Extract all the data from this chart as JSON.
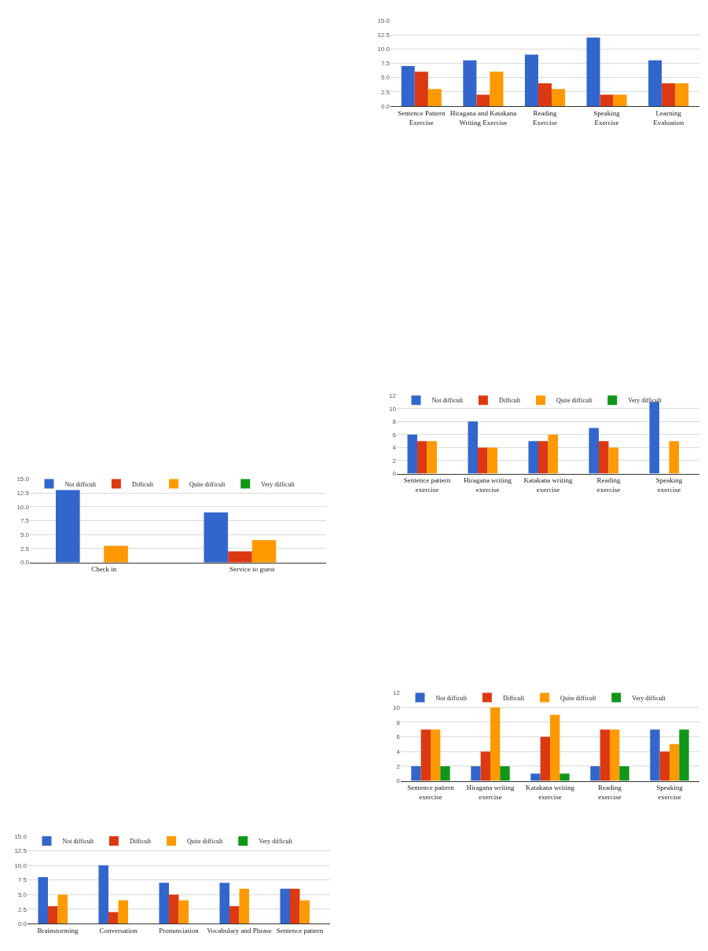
{
  "chart_data": [
    {
      "type": "bar",
      "categories": [
        "Check in",
        "Service to guest"
      ],
      "ylim": [
        0,
        15
      ],
      "yticks": [
        {
          "value": 0,
          "label": "0.0"
        },
        {
          "value": 2.5,
          "label": "2.5"
        },
        {
          "value": 5,
          "label": "5.0"
        },
        {
          "value": 7.5,
          "label": "7.5"
        },
        {
          "value": 10,
          "label": "10.0"
        },
        {
          "value": 12.5,
          "label": "12.5"
        },
        {
          "value": 15,
          "label": "15.0"
        }
      ],
      "grid": "y",
      "legend": "top left",
      "series": [
        {
          "name": "Not difficult",
          "color": "#3366cc",
          "values": [
            13,
            9
          ]
        },
        {
          "name": "Difficult",
          "color": "#dc3912",
          "values": [
            0,
            2
          ]
        },
        {
          "name": "Quite difficult",
          "color": "#ff9900",
          "values": [
            3,
            4
          ]
        },
        {
          "name": "Very difficult",
          "color": "#109618",
          "values": [
            0,
            0
          ]
        }
      ]
    },
    {
      "type": "bar",
      "categories": [
        "Brainstorming",
        "Conversation",
        "Pronunciation",
        "Vocabulary and Phrase",
        "Sentence pattern"
      ],
      "ylim": [
        0,
        15
      ],
      "yticks": [
        {
          "value": 0,
          "label": "0.0"
        },
        {
          "value": 2.5,
          "label": "2.5"
        },
        {
          "value": 5,
          "label": "5.0"
        },
        {
          "value": 7.5,
          "label": "7.5"
        },
        {
          "value": 10,
          "label": "10.0"
        },
        {
          "value": 12.5,
          "label": "12.5"
        },
        {
          "value": 15,
          "label": "15.0"
        }
      ],
      "grid": "y",
      "legend": "top left",
      "series": [
        {
          "name": "Not difficult",
          "color": "#3366cc",
          "values": [
            8,
            10,
            7,
            7,
            6
          ]
        },
        {
          "name": "Difficult",
          "color": "#dc3912",
          "values": [
            3,
            2,
            5,
            3,
            6
          ]
        },
        {
          "name": "Quite difficult",
          "color": "#ff9900",
          "values": [
            5,
            4,
            4,
            6,
            4
          ]
        },
        {
          "name": "Very difficult",
          "color": "#109618",
          "values": [
            0,
            0,
            0,
            0,
            0
          ]
        }
      ]
    },
    {
      "type": "bar",
      "categories": [
        "Sentence Pattern Exercise",
        "Hiragana and Katakana Writing Exercise",
        "Reading Exercise",
        "Speaking Exercise",
        "Learning Evaluation"
      ],
      "ylim": [
        0,
        15
      ],
      "yticks": [
        {
          "value": 0,
          "label": "0.0"
        },
        {
          "value": 2.5,
          "label": "2.5"
        },
        {
          "value": 5,
          "label": "5.0"
        },
        {
          "value": 7.5,
          "label": "7.5"
        },
        {
          "value": 10,
          "label": "10.0"
        },
        {
          "value": 12.5,
          "label": "12.5"
        },
        {
          "value": 15,
          "label": "15.0"
        }
      ],
      "grid": "y",
      "series": [
        {
          "color": "#3366cc",
          "values": [
            7,
            8,
            9,
            12,
            8
          ]
        },
        {
          "color": "#dc3912",
          "values": [
            6,
            2,
            4,
            2,
            4
          ]
        },
        {
          "color": "#ff9900",
          "values": [
            3,
            6,
            3,
            2,
            4
          ]
        }
      ]
    },
    {
      "type": "bar",
      "categories": [
        "Sentence pattern exercise",
        "Hiragana writing exercise",
        "Katakana writing exercise",
        "Reading exercise",
        "Speaking exercise"
      ],
      "ylim": [
        0,
        12
      ],
      "yticks": [
        0,
        2,
        4,
        6,
        8,
        10,
        12
      ],
      "grid": "y",
      "legend": "top left",
      "series": [
        {
          "name": "Not difficult",
          "color": "#3366cc",
          "values": [
            6,
            8,
            5,
            7,
            11
          ]
        },
        {
          "name": "Difficult",
          "color": "#dc3912",
          "values": [
            5,
            4,
            5,
            5,
            0
          ]
        },
        {
          "name": "Quite difficult",
          "color": "#ff9900",
          "values": [
            5,
            4,
            6,
            4,
            5
          ]
        },
        {
          "name": "Very difficult",
          "color": "#109618",
          "values": [
            0,
            0,
            0,
            0,
            0
          ]
        }
      ]
    },
    {
      "type": "bar",
      "categories": [
        "Sentence pattern exercise",
        "Hiragana writing exercise",
        "Katakana writing exercise",
        "Reading exercise",
        "Speaking exercise"
      ],
      "ylim": [
        0,
        12
      ],
      "yticks": [
        0,
        2,
        4,
        6,
        8,
        10,
        12
      ],
      "grid": "y",
      "legend": "top left",
      "series": [
        {
          "name": "Not difficult",
          "color": "#3366cc",
          "values": [
            2,
            2,
            1,
            2,
            7
          ]
        },
        {
          "name": "Difficult",
          "color": "#dc3912",
          "values": [
            7,
            4,
            6,
            7,
            4
          ]
        },
        {
          "name": "Quite difficult",
          "color": "#ff9900",
          "values": [
            7,
            10,
            9,
            7,
            5
          ]
        },
        {
          "name": "Very difficult",
          "color": "#109618",
          "values": [
            2,
            2,
            1,
            2,
            7
          ]
        }
      ]
    }
  ]
}
